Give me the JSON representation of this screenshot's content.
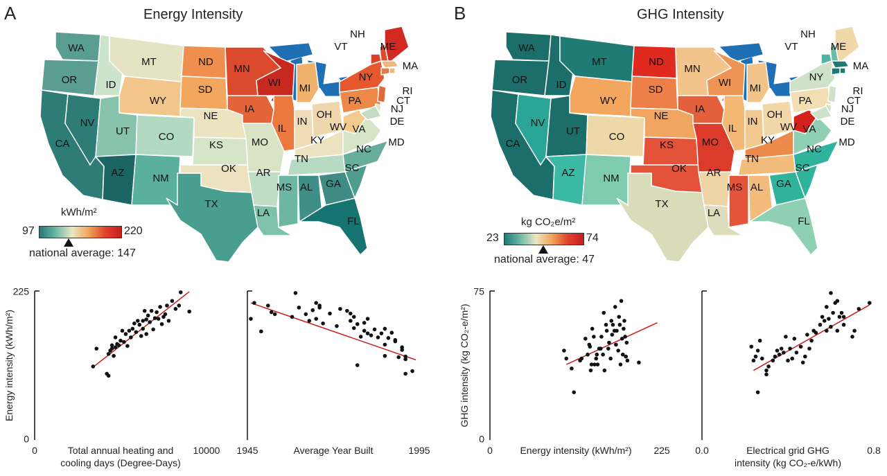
{
  "panels": [
    {
      "letter": "A",
      "title": "Energy Intensity",
      "colorbar": {
        "unit": "kWh/m²",
        "min": "97",
        "max": "220",
        "stops": [
          "#1f7a78",
          "#6cb8a6",
          "#ece6c2",
          "#f0a45a",
          "#e0442e",
          "#c71d1d"
        ]
      },
      "national_average": "national average: 147"
    },
    {
      "letter": "B",
      "title": "GHG Intensity",
      "colorbar": {
        "unit": "kg CO₂e/m²",
        "min": "23",
        "max": "74",
        "stops": [
          "#1f7a78",
          "#6cb8a6",
          "#ece6c2",
          "#f0a45a",
          "#e0442e",
          "#c71d1d"
        ]
      },
      "national_average": "national average: 47"
    }
  ],
  "map_a_states": [
    {
      "abbr": "WA",
      "color": "#5a9e92"
    },
    {
      "abbr": "OR",
      "color": "#5a9e92"
    },
    {
      "abbr": "CA",
      "color": "#2e7c76"
    },
    {
      "abbr": "NV",
      "color": "#2e7c76"
    },
    {
      "abbr": "ID",
      "color": "#cde3cc"
    },
    {
      "abbr": "MT",
      "color": "#e6e3c4"
    },
    {
      "abbr": "WY",
      "color": "#f2c58a"
    },
    {
      "abbr": "UT",
      "color": "#86c2ac"
    },
    {
      "abbr": "AZ",
      "color": "#1b6664"
    },
    {
      "abbr": "CO",
      "color": "#b2d9c2"
    },
    {
      "abbr": "NM",
      "color": "#5aaf9d"
    },
    {
      "abbr": "ND",
      "color": "#ee8f4f"
    },
    {
      "abbr": "SD",
      "color": "#f2a65e"
    },
    {
      "abbr": "NE",
      "color": "#ece3c0"
    },
    {
      "abbr": "KS",
      "color": "#d6e4c8"
    },
    {
      "abbr": "OK",
      "color": "#ede2c0"
    },
    {
      "abbr": "TX",
      "color": "#4a9e90"
    },
    {
      "abbr": "MN",
      "color": "#dc4a2e"
    },
    {
      "abbr": "IA",
      "color": "#e4643a"
    },
    {
      "abbr": "MO",
      "color": "#dbe3c6"
    },
    {
      "abbr": "AR",
      "color": "#bfdcc4"
    },
    {
      "abbr": "LA",
      "color": "#7fc2ac"
    },
    {
      "abbr": "WI",
      "color": "#c92a20"
    },
    {
      "abbr": "IL",
      "color": "#ec7a40"
    },
    {
      "abbr": "MI",
      "color": "#f0b16c"
    },
    {
      "abbr": "IN",
      "color": "#efdcb6"
    },
    {
      "abbr": "OH",
      "color": "#efd6ac"
    },
    {
      "abbr": "KY",
      "color": "#ebe2c0"
    },
    {
      "abbr": "TN",
      "color": "#b6dac2"
    },
    {
      "abbr": "MS",
      "color": "#6cb6a2"
    },
    {
      "abbr": "AL",
      "color": "#3f8f86"
    },
    {
      "abbr": "GA",
      "color": "#3e8c84"
    },
    {
      "abbr": "FL",
      "color": "#157370"
    },
    {
      "abbr": "SC",
      "color": "#4f9c90"
    },
    {
      "abbr": "NC",
      "color": "#66ad9c"
    },
    {
      "abbr": "VA",
      "color": "#d6e5c8"
    },
    {
      "abbr": "WV",
      "color": "#f3c98e"
    },
    {
      "abbr": "PA",
      "color": "#ec8848"
    },
    {
      "abbr": "NY",
      "color": "#e4572f"
    },
    {
      "abbr": "VT",
      "color": "#dd3e2a"
    },
    {
      "abbr": "NH",
      "color": "#e04a2c"
    },
    {
      "abbr": "ME",
      "color": "#d02a22"
    },
    {
      "abbr": "MA",
      "color": "#f0b57a"
    },
    {
      "abbr": "RI",
      "color": "#f0b57a"
    },
    {
      "abbr": "CT",
      "color": "#e67a44"
    },
    {
      "abbr": "NJ",
      "color": "#e0683a"
    },
    {
      "abbr": "DE",
      "color": "#dbe5c8"
    },
    {
      "abbr": "MD",
      "color": "#c4dcc4"
    }
  ],
  "map_b_states": [
    {
      "abbr": "WA",
      "color": "#1c6e6a"
    },
    {
      "abbr": "OR",
      "color": "#1c6e6a"
    },
    {
      "abbr": "CA",
      "color": "#1c6e6a"
    },
    {
      "abbr": "NV",
      "color": "#2aa596"
    },
    {
      "abbr": "ID",
      "color": "#1c6e6a"
    },
    {
      "abbr": "MT",
      "color": "#1e7c74"
    },
    {
      "abbr": "WY",
      "color": "#f2a65e"
    },
    {
      "abbr": "UT",
      "color": "#1c6e6a"
    },
    {
      "abbr": "AZ",
      "color": "#3bb9a4"
    },
    {
      "abbr": "CO",
      "color": "#edd9a8"
    },
    {
      "abbr": "NM",
      "color": "#7fcbb0"
    },
    {
      "abbr": "ND",
      "color": "#e02a20"
    },
    {
      "abbr": "SD",
      "color": "#ec8048"
    },
    {
      "abbr": "NE",
      "color": "#f0a660"
    },
    {
      "abbr": "KS",
      "color": "#e4523a"
    },
    {
      "abbr": "OK",
      "color": "#e4523a"
    },
    {
      "abbr": "TX",
      "color": "#d8dcb8"
    },
    {
      "abbr": "MN",
      "color": "#f2c48c"
    },
    {
      "abbr": "IA",
      "color": "#e4603c"
    },
    {
      "abbr": "MO",
      "color": "#dc3a2a"
    },
    {
      "abbr": "AR",
      "color": "#efd4a6"
    },
    {
      "abbr": "LA",
      "color": "#dedcbc"
    },
    {
      "abbr": "WI",
      "color": "#ee9454"
    },
    {
      "abbr": "IL",
      "color": "#f2b874"
    },
    {
      "abbr": "MI",
      "color": "#f2c48c"
    },
    {
      "abbr": "IN",
      "color": "#f0c890"
    },
    {
      "abbr": "OH",
      "color": "#f2d8a8"
    },
    {
      "abbr": "KY",
      "color": "#ec8a4c"
    },
    {
      "abbr": "TN",
      "color": "#f2bc7c"
    },
    {
      "abbr": "MS",
      "color": "#e4543a"
    },
    {
      "abbr": "AL",
      "color": "#f2bc7c"
    },
    {
      "abbr": "GA",
      "color": "#30b39c"
    },
    {
      "abbr": "FL",
      "color": "#8fd0b4"
    },
    {
      "abbr": "SC",
      "color": "#30b39c"
    },
    {
      "abbr": "NC",
      "color": "#30b39c"
    },
    {
      "abbr": "VA",
      "color": "#8fd0b4"
    },
    {
      "abbr": "WV",
      "color": "#d3221c"
    },
    {
      "abbr": "PA",
      "color": "#f2deb2"
    },
    {
      "abbr": "NY",
      "color": "#cfe2c8"
    },
    {
      "abbr": "VT",
      "color": "#54b3a0"
    },
    {
      "abbr": "NH",
      "color": "#6cbda8"
    },
    {
      "abbr": "ME",
      "color": "#f0d8a8"
    },
    {
      "abbr": "MA",
      "color": "#1c7a72"
    },
    {
      "abbr": "RI",
      "color": "#1c7a72"
    },
    {
      "abbr": "CT",
      "color": "#1c7a72"
    },
    {
      "abbr": "NJ",
      "color": "#cfe2c8"
    },
    {
      "abbr": "DE",
      "color": "#cfe2c8"
    },
    {
      "abbr": "MD",
      "color": "#cfe2c8"
    }
  ],
  "chart_data": [
    {
      "type": "scatter",
      "xlabel": "Total annual heating and cooling days (Degree-Days)",
      "ylabel": "Energy intensity (kWh/m²)",
      "xlim": [
        0,
        10000
      ],
      "ylim": [
        0,
        225
      ],
      "xticks": [
        "0",
        "10000"
      ],
      "yticks": [
        "0",
        "225"
      ],
      "fit_line": [
        [
          3400,
          110
        ],
        [
          9000,
          224
        ]
      ],
      "points": [
        [
          3400,
          111
        ],
        [
          3600,
          138
        ],
        [
          4200,
          100
        ],
        [
          4300,
          97
        ],
        [
          4300,
          130
        ],
        [
          4400,
          135
        ],
        [
          4500,
          138
        ],
        [
          4500,
          143
        ],
        [
          4600,
          127
        ],
        [
          4700,
          140
        ],
        [
          4700,
          155
        ],
        [
          4800,
          145
        ],
        [
          4900,
          143
        ],
        [
          5000,
          150
        ],
        [
          5100,
          165
        ],
        [
          5200,
          148
        ],
        [
          5300,
          160
        ],
        [
          5400,
          142
        ],
        [
          5500,
          165
        ],
        [
          5600,
          155
        ],
        [
          5700,
          168
        ],
        [
          5800,
          176
        ],
        [
          5900,
          163
        ],
        [
          6000,
          180
        ],
        [
          6100,
          174
        ],
        [
          6200,
          157
        ],
        [
          6300,
          168
        ],
        [
          6300,
          180
        ],
        [
          6400,
          195
        ],
        [
          6500,
          160
        ],
        [
          6500,
          182
        ],
        [
          6600,
          188
        ],
        [
          6700,
          178
        ],
        [
          6800,
          195
        ],
        [
          6900,
          167
        ],
        [
          7000,
          184
        ],
        [
          7100,
          193
        ],
        [
          7200,
          183
        ],
        [
          7300,
          201
        ],
        [
          7400,
          175
        ],
        [
          7500,
          186
        ],
        [
          7600,
          190
        ],
        [
          7700,
          203
        ],
        [
          7800,
          180
        ],
        [
          8000,
          210
        ],
        [
          8200,
          198
        ],
        [
          8400,
          203
        ],
        [
          8500,
          223
        ],
        [
          9000,
          194
        ]
      ]
    },
    {
      "type": "scatter",
      "xlabel": "Average Year Built",
      "ylabel": "",
      "xlim": [
        1945,
        1995
      ],
      "ylim": [
        0,
        225
      ],
      "xticks": [
        "1945",
        "1995"
      ],
      "yticks": [],
      "fit_line": [
        [
          1946,
          207
        ],
        [
          1994,
          121
        ]
      ],
      "points": [
        [
          1946,
          183
        ],
        [
          1947,
          207
        ],
        [
          1949,
          164
        ],
        [
          1951,
          203
        ],
        [
          1952,
          193
        ],
        [
          1953,
          190
        ],
        [
          1958,
          186
        ],
        [
          1959,
          222
        ],
        [
          1960,
          200
        ],
        [
          1962,
          190
        ],
        [
          1963,
          180
        ],
        [
          1964,
          196
        ],
        [
          1965,
          183
        ],
        [
          1965,
          207
        ],
        [
          1966,
          200
        ],
        [
          1966,
          203
        ],
        [
          1967,
          176
        ],
        [
          1969,
          191
        ],
        [
          1971,
          172
        ],
        [
          1972,
          198
        ],
        [
          1974,
          195
        ],
        [
          1975,
          180
        ],
        [
          1975,
          191
        ],
        [
          1976,
          169
        ],
        [
          1976,
          186
        ],
        [
          1977,
          175
        ],
        [
          1978,
          156
        ],
        [
          1979,
          165
        ],
        [
          1979,
          177
        ],
        [
          1980,
          183
        ],
        [
          1980,
          161
        ],
        [
          1981,
          158
        ],
        [
          1982,
          167
        ],
        [
          1983,
          155
        ],
        [
          1984,
          161
        ],
        [
          1985,
          144
        ],
        [
          1985,
          168
        ],
        [
          1986,
          154
        ],
        [
          1987,
          162
        ],
        [
          1988,
          151
        ],
        [
          1988,
          149
        ],
        [
          1989,
          125
        ],
        [
          1990,
          136
        ],
        [
          1990,
          140
        ],
        [
          1991,
          126
        ],
        [
          1991,
          122
        ],
        [
          1991,
          100
        ],
        [
          1993,
          104
        ],
        [
          1977,
          113
        ],
        [
          1985,
          127
        ]
      ]
    },
    {
      "type": "scatter",
      "xlabel": "Energy intensity (kWh/m²)",
      "ylabel": "GHG intensity (kg CO₂-e/m²)",
      "xlim": [
        0,
        225
      ],
      "ylim": [
        0,
        75
      ],
      "xticks": [
        "0",
        "225"
      ],
      "yticks": [
        "0",
        "75"
      ],
      "fit_line": [
        [
          100,
          38
        ],
        [
          219,
          59
        ]
      ],
      "points": [
        [
          97,
          45
        ],
        [
          100,
          41
        ],
        [
          107,
          36
        ],
        [
          110,
          24
        ],
        [
          118,
          40
        ],
        [
          120,
          41
        ],
        [
          125,
          51
        ],
        [
          128,
          43
        ],
        [
          130,
          48
        ],
        [
          131,
          47
        ],
        [
          132,
          35
        ],
        [
          133,
          38
        ],
        [
          134,
          56
        ],
        [
          136,
          52
        ],
        [
          137,
          38
        ],
        [
          139,
          41
        ],
        [
          140,
          43
        ],
        [
          141,
          38
        ],
        [
          143,
          46
        ],
        [
          145,
          46
        ],
        [
          146,
          52
        ],
        [
          148,
          43
        ],
        [
          149,
          64
        ],
        [
          150,
          35
        ],
        [
          152,
          58
        ],
        [
          153,
          55
        ],
        [
          155,
          46
        ],
        [
          156,
          49
        ],
        [
          158,
          41
        ],
        [
          159,
          60
        ],
        [
          160,
          53
        ],
        [
          161,
          58
        ],
        [
          163,
          55
        ],
        [
          164,
          67
        ],
        [
          165,
          48
        ],
        [
          166,
          55
        ],
        [
          168,
          45
        ],
        [
          169,
          62
        ],
        [
          170,
          58
        ],
        [
          171,
          38
        ],
        [
          172,
          70
        ],
        [
          173,
          51
        ],
        [
          174,
          43
        ],
        [
          175,
          56
        ],
        [
          176,
          60
        ],
        [
          177,
          52
        ],
        [
          178,
          42
        ],
        [
          179,
          49
        ],
        [
          180,
          40
        ],
        [
          195,
          39
        ]
      ]
    },
    {
      "type": "scatter",
      "xlabel": "Electrical grid GHG intensity (kg CO₂-e/kWh)",
      "ylabel": "",
      "xlim": [
        0.0,
        0.8
      ],
      "ylim": [
        0,
        75
      ],
      "xticks": [
        "0.0",
        "0.8"
      ],
      "yticks": [],
      "fit_line": [
        [
          0.24,
          35
        ],
        [
          0.78,
          68
        ]
      ],
      "points": [
        [
          0.23,
          47
        ],
        [
          0.24,
          40
        ],
        [
          0.25,
          42
        ],
        [
          0.26,
          24
        ],
        [
          0.26,
          45
        ],
        [
          0.27,
          50
        ],
        [
          0.28,
          41
        ],
        [
          0.3,
          33
        ],
        [
          0.3,
          35
        ],
        [
          0.31,
          37
        ],
        [
          0.33,
          40
        ],
        [
          0.34,
          42
        ],
        [
          0.35,
          45
        ],
        [
          0.36,
          43
        ],
        [
          0.37,
          46
        ],
        [
          0.38,
          44
        ],
        [
          0.39,
          52
        ],
        [
          0.4,
          40
        ],
        [
          0.41,
          46
        ],
        [
          0.42,
          41
        ],
        [
          0.43,
          51
        ],
        [
          0.46,
          47
        ],
        [
          0.47,
          39
        ],
        [
          0.48,
          42
        ],
        [
          0.49,
          53
        ],
        [
          0.5,
          46
        ],
        [
          0.51,
          50
        ],
        [
          0.52,
          55
        ],
        [
          0.53,
          54
        ],
        [
          0.55,
          58
        ],
        [
          0.56,
          62
        ],
        [
          0.57,
          60
        ],
        [
          0.58,
          67
        ],
        [
          0.59,
          61
        ],
        [
          0.6,
          74
        ],
        [
          0.6,
          57
        ],
        [
          0.61,
          64
        ],
        [
          0.62,
          69
        ],
        [
          0.63,
          70
        ],
        [
          0.64,
          62
        ],
        [
          0.65,
          64
        ],
        [
          0.66,
          58
        ],
        [
          0.7,
          52
        ],
        [
          0.71,
          55
        ],
        [
          0.73,
          66
        ],
        [
          0.78,
          69
        ],
        [
          0.63,
          55
        ],
        [
          0.44,
          44
        ],
        [
          0.58,
          55
        ],
        [
          0.66,
          62
        ]
      ]
    }
  ]
}
